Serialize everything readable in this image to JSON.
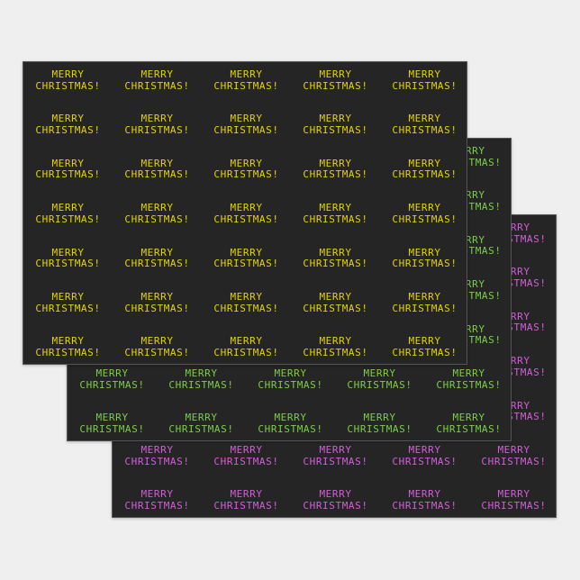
{
  "greeting": {
    "line1": "MERRY",
    "line2": "CHRISTMAS!"
  },
  "sheets": [
    {
      "name": "yellow",
      "text_color": "#e3d400"
    },
    {
      "name": "green",
      "text_color": "#7ccf46"
    },
    {
      "name": "magenta",
      "text_color": "#d25fd8"
    }
  ],
  "sheet_background": "#252525"
}
